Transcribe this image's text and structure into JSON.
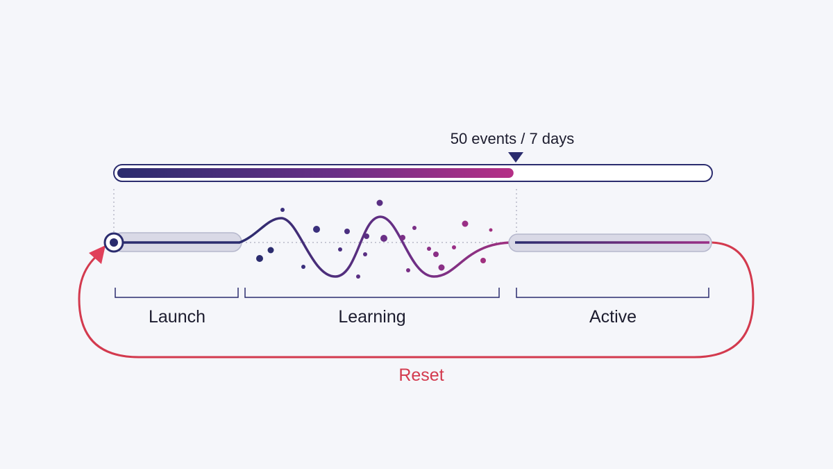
{
  "threshold": {
    "label": "50 events / 7 days",
    "progress": 0.67
  },
  "stages": [
    {
      "label": "Launch"
    },
    {
      "label": "Learning"
    },
    {
      "label": "Active"
    }
  ],
  "reset": {
    "label": "Reset"
  },
  "colors": {
    "background": "#f5f6fa",
    "navy": "#2b2c6e",
    "magenta": "#b52f86",
    "reset_red": "#d33a4e",
    "track_fill": "#d9d9e6",
    "track_stroke": "#b5b7cc"
  }
}
